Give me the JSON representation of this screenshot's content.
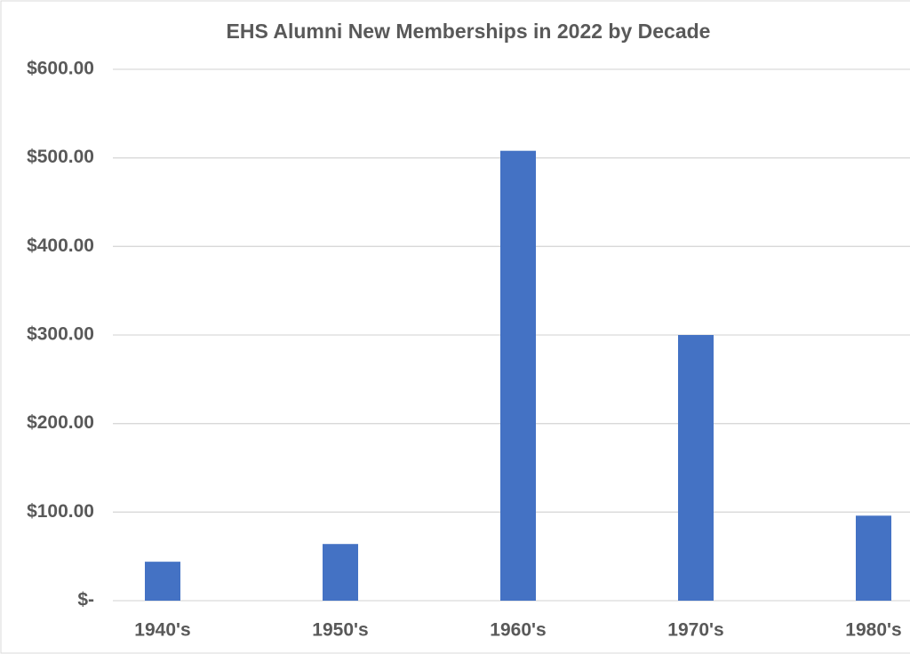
{
  "chart_data": {
    "type": "bar",
    "title": "EHS Alumni New Memberships in 2022 by Decade",
    "categories": [
      "1940's",
      "1950's",
      "1960's",
      "1970's",
      "1980's"
    ],
    "values": [
      44,
      64,
      508,
      300,
      96
    ],
    "color": "#4472c4",
    "ylim": [
      0,
      600
    ],
    "yticks": [
      {
        "value": 0,
        "label": "$-"
      },
      {
        "value": 100,
        "label": "$100.00"
      },
      {
        "value": 200,
        "label": "$200.00"
      },
      {
        "value": 300,
        "label": "$300.00"
      },
      {
        "value": 400,
        "label": "$400.00"
      },
      {
        "value": 500,
        "label": "$500.00"
      },
      {
        "value": 600,
        "label": "$600.00"
      }
    ],
    "grid": true
  }
}
